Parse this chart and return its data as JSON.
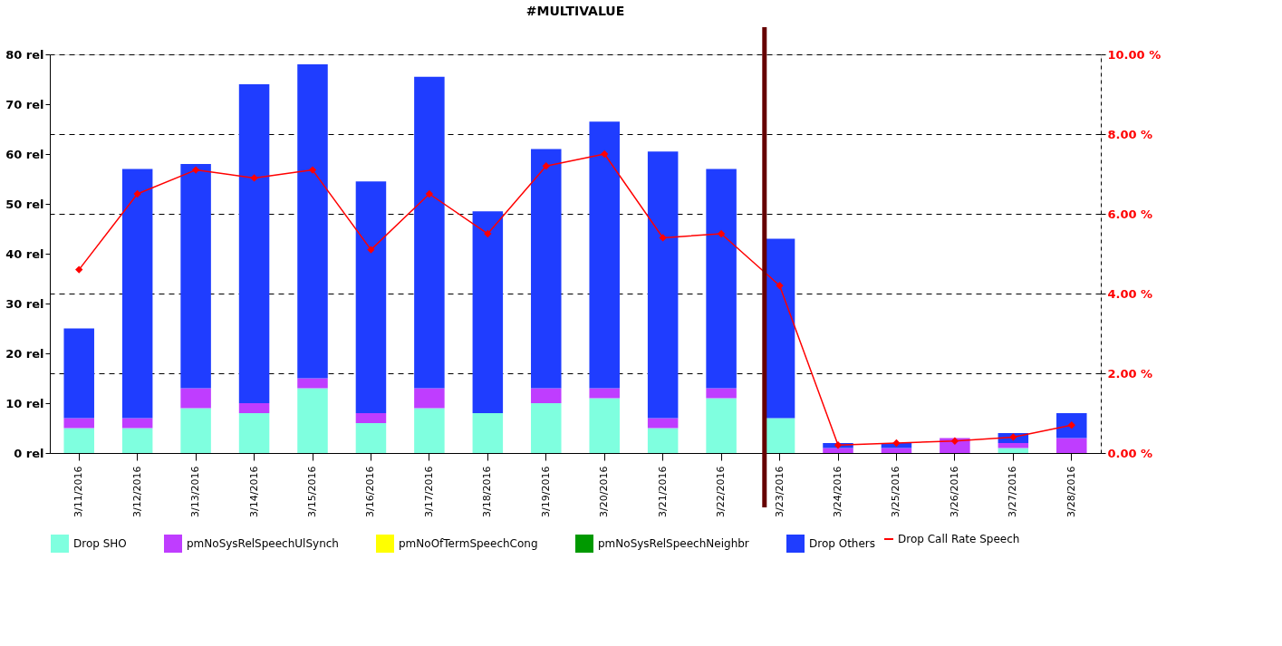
{
  "chart_data": {
    "type": "bar",
    "title": "#MULTIVALUE",
    "stacked": true,
    "categories": [
      "3/11/2016",
      "3/12/2016",
      "3/13/2016",
      "3/14/2016",
      "3/15/2016",
      "3/16/2016",
      "3/17/2016",
      "3/18/2016",
      "3/19/2016",
      "3/20/2016",
      "3/21/2016",
      "3/22/2016",
      "3/23/2016",
      "3/24/2016",
      "3/25/2016",
      "3/26/2016",
      "3/27/2016",
      "3/28/2016"
    ],
    "series": [
      {
        "name": "Drop SHO",
        "color": "#7fffdf",
        "values": [
          5,
          5,
          9,
          8,
          13,
          6,
          9,
          8,
          10,
          11,
          5,
          11,
          7,
          0,
          0,
          0,
          1,
          0
        ]
      },
      {
        "name": "pmNoSysRelSpeechUlSynch",
        "color": "#bf3dff",
        "values": [
          2,
          2,
          4,
          2,
          2,
          2,
          4,
          0,
          3,
          2,
          2,
          2,
          0,
          1,
          1,
          3,
          1,
          3
        ]
      },
      {
        "name": "pmNoOfTermSpeechCong",
        "color": "#ffff00",
        "values": [
          0,
          0,
          0,
          0,
          0,
          0,
          0,
          0,
          0,
          0,
          0,
          0,
          0,
          0,
          0,
          0,
          0,
          0
        ]
      },
      {
        "name": "pmNoSysRelSpeechNeighbr",
        "color": "#009900",
        "values": [
          0,
          0,
          0,
          0,
          0,
          0,
          0,
          0,
          0,
          0,
          0,
          0,
          0,
          0,
          0,
          0,
          0,
          0
        ]
      },
      {
        "name": "Drop Others",
        "color": "#1f3dff",
        "values": [
          18,
          50,
          45,
          64,
          63,
          46.5,
          62.5,
          40.5,
          48,
          53.5,
          53.5,
          44,
          36,
          1,
          1,
          0,
          2,
          5
        ]
      },
      {
        "name": "Drop Call Rate Speech",
        "color": "#ff0000",
        "type": "line",
        "axis": "y2",
        "marker": "diamond",
        "values": [
          4.6,
          6.5,
          7.1,
          6.9,
          7.1,
          5.1,
          6.5,
          5.5,
          7.2,
          7.5,
          5.4,
          5.5,
          4.2,
          0.2,
          0.25,
          0.3,
          0.4,
          0.7
        ]
      }
    ],
    "ylim": [
      0,
      80
    ],
    "yticks": [
      {
        "value": 0,
        "label": "0 rel"
      },
      {
        "value": 10,
        "label": "10 rel"
      },
      {
        "value": 20,
        "label": "20 rel"
      },
      {
        "value": 30,
        "label": "30 rel"
      },
      {
        "value": 40,
        "label": "40 rel"
      },
      {
        "value": 50,
        "label": "50 rel"
      },
      {
        "value": 60,
        "label": "60 rel"
      },
      {
        "value": 70,
        "label": "70 rel"
      },
      {
        "value": 80,
        "label": "80 rel"
      }
    ],
    "y2lim": [
      0,
      10
    ],
    "y2ticks": [
      {
        "value": 0,
        "label": "0.00 %"
      },
      {
        "value": 2,
        "label": "2.00 %"
      },
      {
        "value": 4,
        "label": "4.00 %"
      },
      {
        "value": 6,
        "label": "6.00 %"
      },
      {
        "value": 8,
        "label": "8.00 %"
      },
      {
        "value": 10,
        "label": "10.00 %"
      }
    ],
    "ref_lines": [
      {
        "axis": "x",
        "value": "3/23/2016",
        "color": "#660000"
      }
    ],
    "grid": "y2",
    "legend": "bottom"
  }
}
